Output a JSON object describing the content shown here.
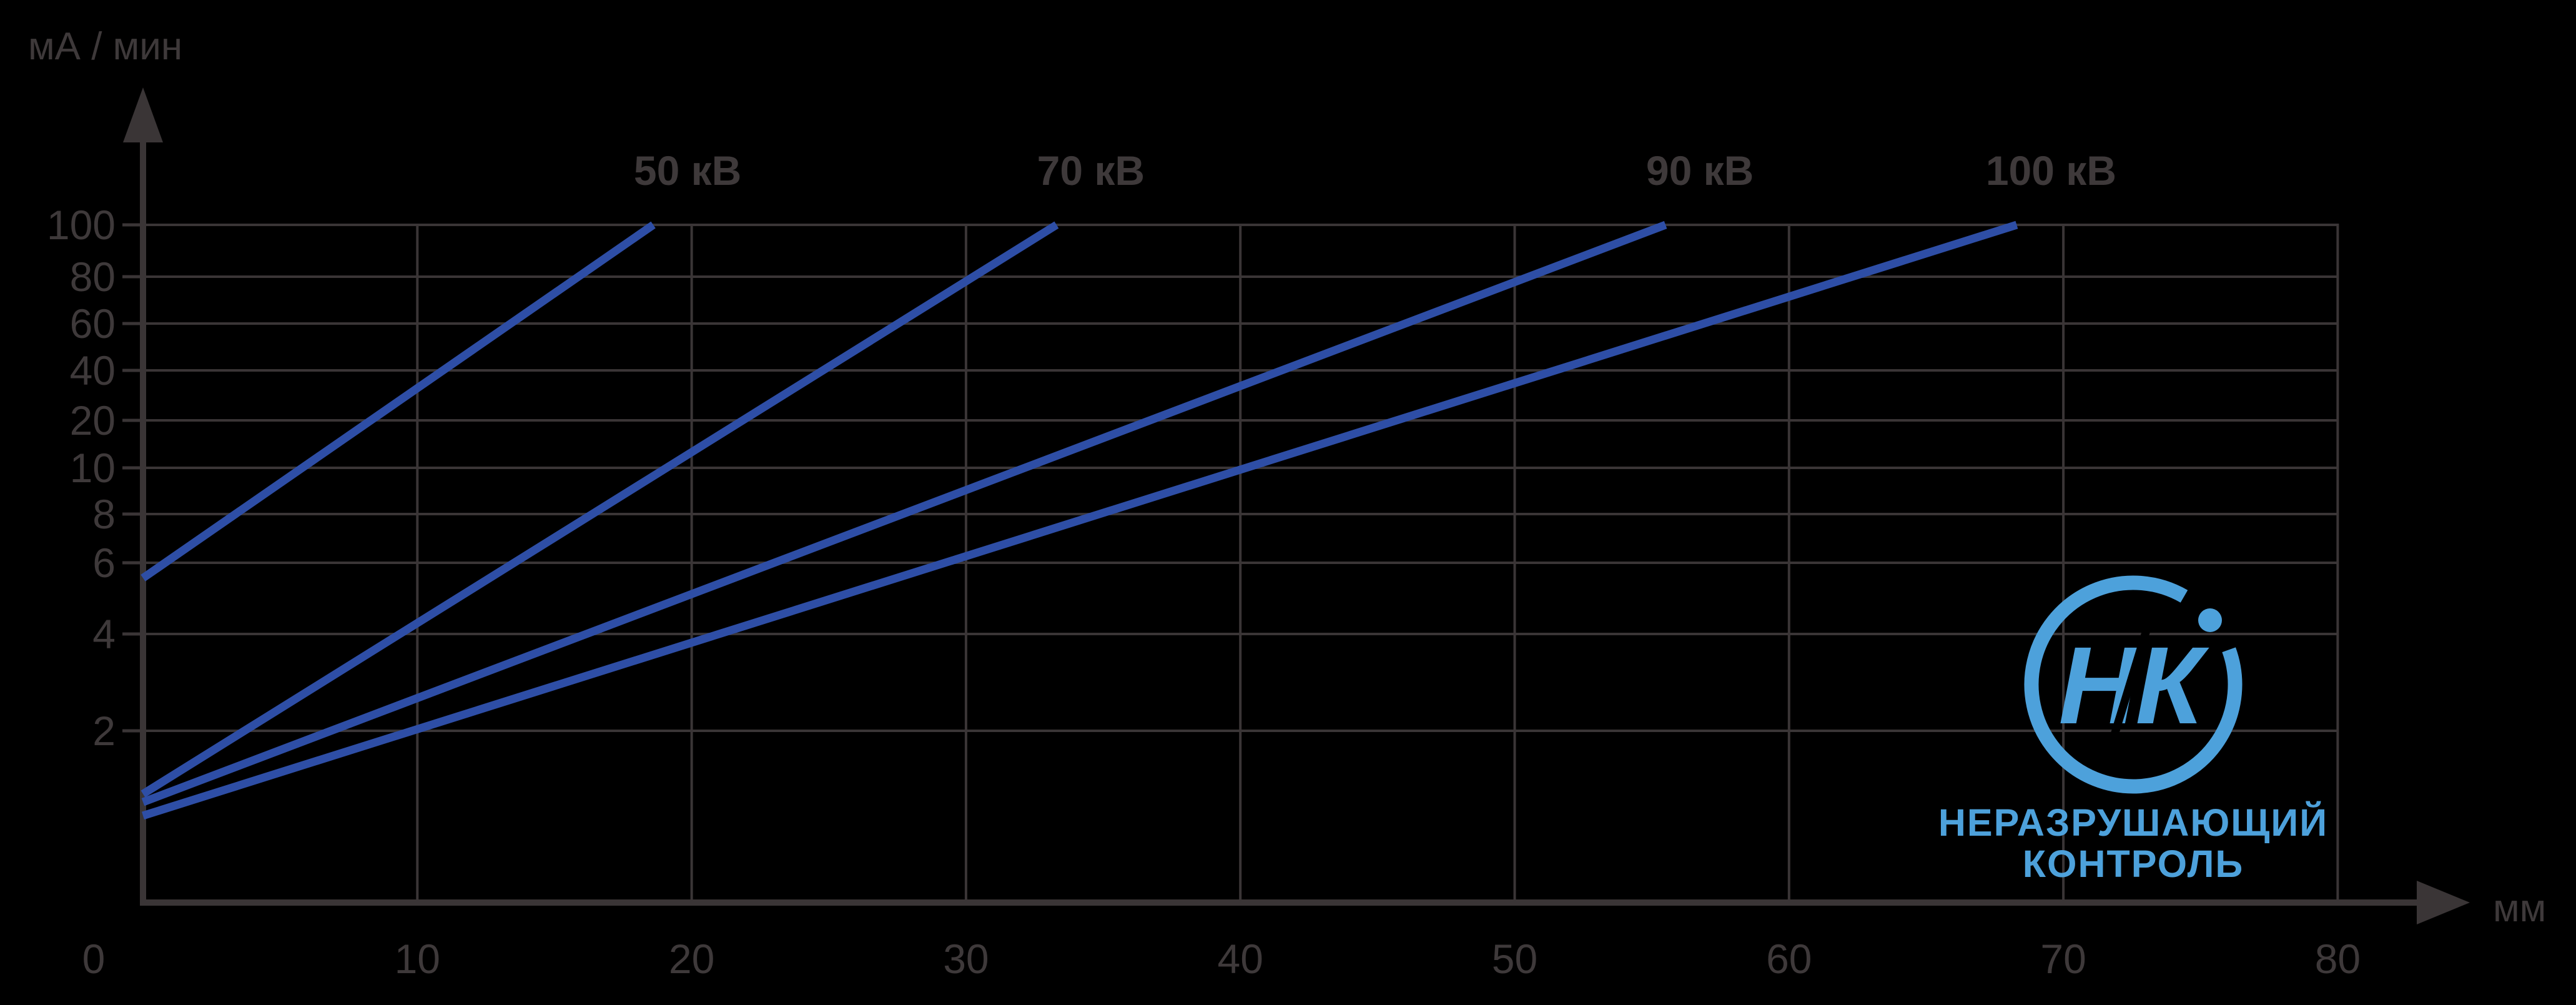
{
  "chart_data": {
    "type": "line",
    "title": "",
    "xlabel": "мм",
    "ylabel": "мА / мин",
    "x_ticks": [
      0,
      10,
      20,
      30,
      40,
      50,
      60,
      70,
      80
    ],
    "y_ticks": [
      100,
      80,
      60,
      40,
      20,
      10,
      8,
      6,
      4,
      2
    ],
    "xlim": [
      0,
      80
    ],
    "ylim": [
      1,
      100
    ],
    "scale_note": "quasi-logarithmic y scale",
    "grid": true,
    "legend_position": "labels-above-line-ends",
    "series": [
      {
        "name": "50 кВ",
        "points": [
          [
            0,
            5.5
          ],
          [
            18.6,
            100
          ]
        ]
      },
      {
        "name": "70 кВ",
        "points": [
          [
            0,
            1.55
          ],
          [
            33.3,
            100
          ]
        ]
      },
      {
        "name": "90 кВ",
        "points": [
          [
            0,
            1.5
          ],
          [
            55.5,
            100
          ]
        ]
      },
      {
        "name": "100 кВ",
        "points": [
          [
            0,
            1.42
          ],
          [
            68.3,
            100
          ]
        ]
      }
    ],
    "colors": {
      "background": "#000000",
      "series_line": "#2e4ea6",
      "grid": "#3a3536",
      "labels": "#3e393a"
    }
  },
  "logo": {
    "monogram": "НК",
    "line1": "НЕРАЗРУШАЮЩИЙ",
    "line2": "КОНТРОЛЬ",
    "color": "#4da1db"
  }
}
